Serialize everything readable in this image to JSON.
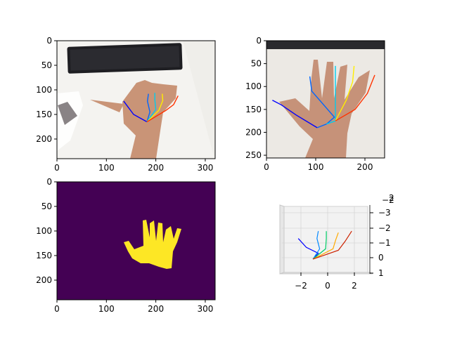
{
  "chart_data": [
    {
      "panel": "top-left",
      "type": "image-with-hand-skeleton",
      "title": "",
      "xlim": [
        0,
        320
      ],
      "ylim": [
        240,
        0
      ],
      "xticks": [
        0,
        100,
        200,
        300
      ],
      "yticks": [
        0,
        50,
        100,
        150,
        200
      ],
      "image": "photo of a hand on a white desk, keyboard at top-left",
      "skeleton": {
        "wrist": [
          182,
          165
        ],
        "fingers": [
          {
            "name": "thumb",
            "color": "#0000ff",
            "points": [
              [
                182,
                165
              ],
              [
                155,
                150
              ],
              [
                135,
                123
              ]
            ]
          },
          {
            "name": "index",
            "color": "#0066ff",
            "points": [
              [
                182,
                165
              ],
              [
                188,
                145
              ],
              [
                183,
                123
              ],
              [
                185,
                108
              ]
            ]
          },
          {
            "name": "middle",
            "color": "#00ccee",
            "points": [
              [
                182,
                165
              ],
              [
                200,
                140
              ],
              [
                198,
                120
              ],
              [
                198,
                106
              ]
            ]
          },
          {
            "name": "ring",
            "color": "#ffee00",
            "points": [
              [
                182,
                165
              ],
              [
                206,
                142
              ],
              [
                214,
                122
              ],
              [
                213,
                108
              ]
            ]
          },
          {
            "name": "little",
            "color": "#ff3300",
            "points": [
              [
                182,
                165
              ],
              [
                220,
                142
              ],
              [
                236,
                130
              ],
              [
                245,
                112
              ]
            ]
          }
        ]
      }
    },
    {
      "panel": "top-right",
      "type": "image-with-hand-skeleton",
      "title": "",
      "xlim": [
        0,
        240
      ],
      "ylim": [
        256,
        0
      ],
      "xticks": [
        0,
        100,
        200
      ],
      "yticks": [
        0,
        50,
        100,
        150,
        200,
        250
      ],
      "image": "cropped photo of the hand",
      "skeleton": {
        "wrist": [
          103,
          190
        ],
        "fingers": [
          {
            "name": "thumb",
            "color": "#0000ff",
            "points": [
              [
                103,
                190
              ],
              [
                60,
                162
              ],
              [
                30,
                140
              ],
              [
                12,
                130
              ]
            ]
          },
          {
            "name": "index",
            "color": "#0066ff",
            "points": [
              [
                103,
                190
              ],
              [
                122,
                182
              ],
              [
                138,
                167
              ],
              [
                92,
                110
              ],
              [
                88,
                78
              ]
            ]
          },
          {
            "name": "middle",
            "color": "#00ccee",
            "points": [
              [
                122,
                182
              ],
              [
                140,
                175
              ],
              [
                140,
                125
              ],
              [
                140,
                80
              ],
              [
                140,
                55
              ]
            ]
          },
          {
            "name": "ring",
            "color": "#ffee00",
            "points": [
              [
                140,
                175
              ],
              [
                162,
                130
              ],
              [
                175,
                90
              ],
              [
                178,
                55
              ]
            ]
          },
          {
            "name": "little",
            "color": "#ff3300",
            "points": [
              [
                140,
                175
              ],
              [
                180,
                150
              ],
              [
                205,
                115
              ],
              [
                220,
                75
              ]
            ]
          }
        ]
      }
    },
    {
      "panel": "bottom-left",
      "type": "heatmap",
      "title": "",
      "description": "binary hand mask (viridis colormap)",
      "xlim": [
        0,
        320
      ],
      "ylim": [
        240,
        0
      ],
      "xticks": [
        0,
        100,
        200,
        300
      ],
      "yticks": [
        0,
        50,
        100,
        150,
        200
      ],
      "colors": {
        "background": "#440154",
        "foreground": "#fde725"
      }
    },
    {
      "panel": "bottom-right",
      "type": "line",
      "projection": "3d",
      "title": "",
      "xticks": [
        -2,
        0,
        2
      ],
      "yticks_right": [
        -3,
        -2,
        -1,
        0,
        1
      ],
      "zticks_right": [
        -2,
        2
      ],
      "xlim": [
        -3.6,
        3.6
      ],
      "series": [
        {
          "color": "#0000ff",
          "x": [
            -1.1,
            -0.7,
            -1.6,
            -2.2
          ],
          "y": [
            0.1,
            -0.3,
            -0.7,
            -1.3
          ]
        },
        {
          "color": "#0088ff",
          "x": [
            -1.1,
            -0.6,
            -0.8,
            -0.7
          ],
          "y": [
            0.1,
            -0.6,
            -1.3,
            -1.8
          ]
        },
        {
          "color": "#00cc66",
          "x": [
            -1.1,
            -0.15,
            -0.1,
            -0.1
          ],
          "y": [
            0.1,
            -0.6,
            -1.3,
            -1.8
          ]
        },
        {
          "color": "#ffaa00",
          "x": [
            -1.1,
            0.4,
            0.6,
            0.8
          ],
          "y": [
            0.1,
            -0.6,
            -1.2,
            -1.7
          ]
        },
        {
          "color": "#cc2200",
          "x": [
            -1.1,
            0.8,
            1.3,
            1.8
          ],
          "y": [
            0.1,
            -0.5,
            -1.1,
            -1.8
          ]
        }
      ]
    }
  ]
}
